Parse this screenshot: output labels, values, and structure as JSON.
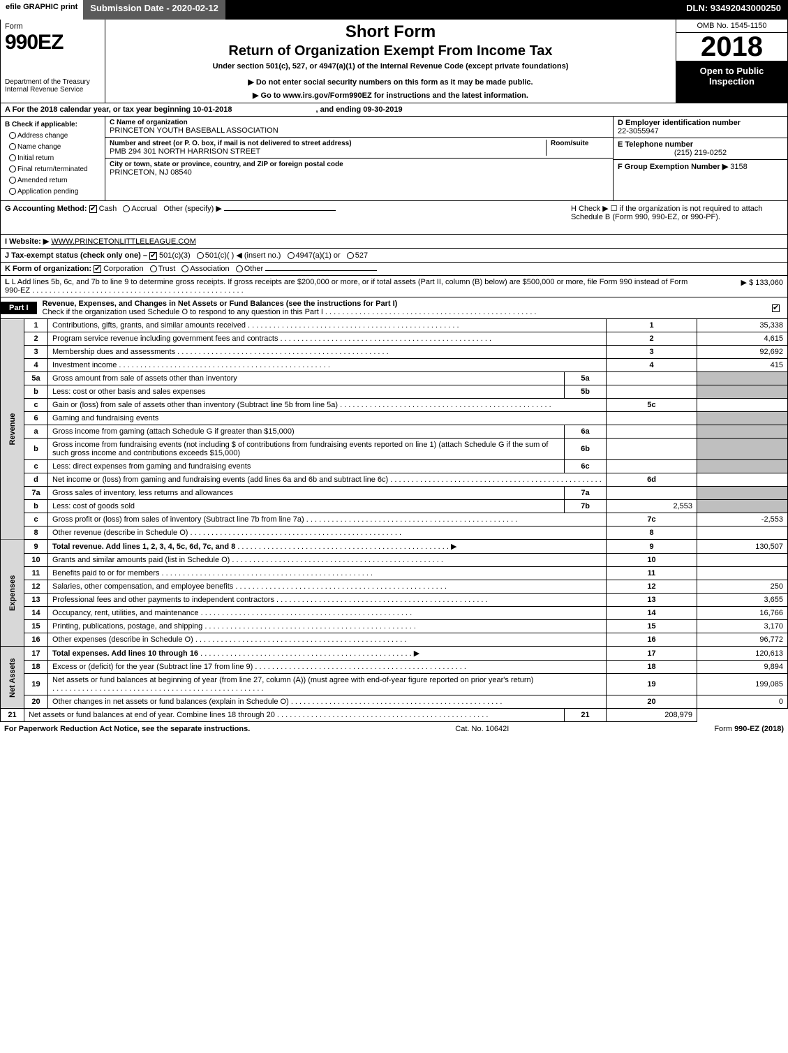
{
  "topbar": {
    "efile": "efile GRAPHIC print",
    "sub": "Submission Date - 2020-02-12",
    "dln": "DLN: 93492043000250"
  },
  "header": {
    "form": "Form",
    "n990": "990EZ",
    "dept": "Department of the Treasury\nInternal Revenue Service",
    "sf": "Short Form",
    "ret": "Return of Organization Exempt From Income Tax",
    "under": "Under section 501(c), 527, or 4947(a)(1) of the Internal Revenue Code (except private foundations)",
    "note": "▶ Do not enter social security numbers on this form as it may be made public.",
    "goto": "▶ Go to www.irs.gov/Form990EZ for instructions and the latest information.",
    "omb": "OMB No. 1545-1150",
    "year": "2018",
    "open": "Open to Public Inspection"
  },
  "cal": {
    "a": "A For the 2018 calendar year, or tax year beginning 10-01-2018",
    "e": ", and ending 09-30-2019"
  },
  "B": {
    "hdr": "B Check if applicable:",
    "items": [
      "Address change",
      "Name change",
      "Initial return",
      "Final return/terminated",
      "Amended return",
      "Application pending"
    ]
  },
  "C": {
    "nameLbl": "C Name of organization",
    "name": "PRINCETON YOUTH BASEBALL ASSOCIATION",
    "addrLbl": "Number and street (or P. O. box, if mail is not delivered to street address)",
    "roomLbl": "Room/suite",
    "addr": "PMB 294 301 NORTH HARRISON STREET",
    "cityLbl": "City or town, state or province, country, and ZIP or foreign postal code",
    "city": "PRINCETON, NJ  08540"
  },
  "D": {
    "lbl": "D Employer identification number",
    "val": "22-3055947"
  },
  "E": {
    "lbl": "E Telephone number",
    "val": "(215) 219-0252"
  },
  "F": {
    "lbl": "F Group Exemption Number  ▶",
    "val": "3158"
  },
  "G": {
    "lbl": "G Accounting Method:",
    "cash": "Cash",
    "accr": "Accrual",
    "other": "Other (specify) ▶"
  },
  "H": {
    "txt": "H  Check ▶  ☐  if the organization is not required to attach Schedule B (Form 990, 990-EZ, or 990-PF)."
  },
  "I": {
    "lbl": "I Website: ▶",
    "val": "WWW.PRINCETONLITTLELEAGUE.COM"
  },
  "J": {
    "lbl": "J Tax-exempt status (check only one) –",
    "a": "501(c)(3)",
    "b": "501(c)(  ) ◀ (insert no.)",
    "c": "4947(a)(1) or",
    "d": "527"
  },
  "K": {
    "lbl": "K Form of organization:",
    "a": "Corporation",
    "b": "Trust",
    "c": "Association",
    "d": "Other"
  },
  "L": {
    "txt": "L Add lines 5b, 6c, and 7b to line 9 to determine gross receipts. If gross receipts are $200,000 or more, or if total assets (Part II, column (B) below) are $500,000 or more, file Form 990 instead of Form 990-EZ",
    "amt": "▶ $ 133,060"
  },
  "partI": {
    "lbl": "Part I",
    "txt": "Revenue, Expenses, and Changes in Net Assets or Fund Balances (see the instructions for Part I)",
    "sub": "Check if the organization used Schedule O to respond to any question in this Part I"
  },
  "sides": {
    "rev": "Revenue",
    "exp": "Expenses",
    "na": "Net Assets"
  },
  "rows": [
    {
      "n": "1",
      "d": "Contributions, gifts, grants, and similar amounts received",
      "sn": "1",
      "amt": "35,338"
    },
    {
      "n": "2",
      "d": "Program service revenue including government fees and contracts",
      "sn": "2",
      "amt": "4,615"
    },
    {
      "n": "3",
      "d": "Membership dues and assessments",
      "sn": "3",
      "amt": "92,692"
    },
    {
      "n": "4",
      "d": "Investment income",
      "sn": "4",
      "amt": "415"
    },
    {
      "n": "5a",
      "d": "Gross amount from sale of assets other than inventory",
      "il": "5a",
      "iv": ""
    },
    {
      "n": "b",
      "d": "Less: cost or other basis and sales expenses",
      "il": "5b",
      "iv": ""
    },
    {
      "n": "c",
      "d": "Gain or (loss) from sale of assets other than inventory (Subtract line 5b from line 5a)",
      "sn": "5c",
      "amt": ""
    },
    {
      "n": "6",
      "d": "Gaming and fundraising events",
      "plain": true
    },
    {
      "n": "a",
      "d": "Gross income from gaming (attach Schedule G if greater than $15,000)",
      "il": "6a",
      "iv": ""
    },
    {
      "n": "b",
      "d": "Gross income from fundraising events (not including $                 of contributions from fundraising events reported on line 1) (attach Schedule G if the sum of such gross income and contributions exceeds $15,000)",
      "il": "6b",
      "iv": ""
    },
    {
      "n": "c",
      "d": "Less: direct expenses from gaming and fundraising events",
      "il": "6c",
      "iv": ""
    },
    {
      "n": "d",
      "d": "Net income or (loss) from gaming and fundraising events (add lines 6a and 6b and subtract line 6c)",
      "sn": "6d",
      "amt": ""
    },
    {
      "n": "7a",
      "d": "Gross sales of inventory, less returns and allowances",
      "il": "7a",
      "iv": ""
    },
    {
      "n": "b",
      "d": "Less: cost of goods sold",
      "il": "7b",
      "iv": "2,553"
    },
    {
      "n": "c",
      "d": "Gross profit or (loss) from sales of inventory (Subtract line 7b from line 7a)",
      "sn": "7c",
      "amt": "-2,553"
    },
    {
      "n": "8",
      "d": "Other revenue (describe in Schedule O)",
      "sn": "8",
      "amt": ""
    },
    {
      "n": "9",
      "d": "Total revenue. Add lines 1, 2, 3, 4, 5c, 6d, 7c, and 8",
      "sn": "9",
      "amt": "130,507",
      "bold": true,
      "arrow": true
    },
    {
      "n": "10",
      "d": "Grants and similar amounts paid (list in Schedule O)",
      "sn": "10",
      "amt": ""
    },
    {
      "n": "11",
      "d": "Benefits paid to or for members",
      "sn": "11",
      "amt": ""
    },
    {
      "n": "12",
      "d": "Salaries, other compensation, and employee benefits",
      "sn": "12",
      "amt": "250"
    },
    {
      "n": "13",
      "d": "Professional fees and other payments to independent contractors",
      "sn": "13",
      "amt": "3,655"
    },
    {
      "n": "14",
      "d": "Occupancy, rent, utilities, and maintenance",
      "sn": "14",
      "amt": "16,766"
    },
    {
      "n": "15",
      "d": "Printing, publications, postage, and shipping",
      "sn": "15",
      "amt": "3,170"
    },
    {
      "n": "16",
      "d": "Other expenses (describe in Schedule O)",
      "sn": "16",
      "amt": "96,772"
    },
    {
      "n": "17",
      "d": "Total expenses. Add lines 10 through 16",
      "sn": "17",
      "amt": "120,613",
      "bold": true,
      "arrow": true
    },
    {
      "n": "18",
      "d": "Excess or (deficit) for the year (Subtract line 17 from line 9)",
      "sn": "18",
      "amt": "9,894"
    },
    {
      "n": "19",
      "d": "Net assets or fund balances at beginning of year (from line 27, column (A)) (must agree with end-of-year figure reported on prior year's return)",
      "sn": "19",
      "amt": "199,085"
    },
    {
      "n": "20",
      "d": "Other changes in net assets or fund balances (explain in Schedule O)",
      "sn": "20",
      "amt": "0"
    },
    {
      "n": "21",
      "d": "Net assets or fund balances at end of year. Combine lines 18 through 20",
      "sn": "21",
      "amt": "208,979"
    }
  ],
  "footer": {
    "l": "For Paperwork Reduction Act Notice, see the separate instructions.",
    "m": "Cat. No. 10642I",
    "r": "Form 990-EZ (2018)"
  }
}
